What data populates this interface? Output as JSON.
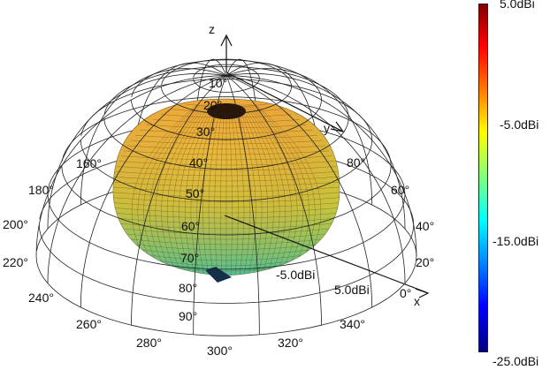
{
  "chart_data": {
    "type": "3d-radiation-pattern",
    "axes": {
      "x": "x",
      "y": "y",
      "z": "z"
    },
    "elevation_labels": [
      "10°",
      "20°",
      "30°",
      "40°",
      "50°",
      "60°",
      "70°",
      "80°",
      "90°"
    ],
    "azimuth_labels": [
      "0°",
      "20°",
      "40°",
      "60°",
      "80°",
      "160°",
      "180°",
      "200°",
      "220°",
      "240°",
      "260°",
      "280°",
      "300°",
      "320°",
      "340°"
    ],
    "radial_labels": [
      "-5.0dBi",
      "5.0dBi"
    ],
    "colorbar": {
      "ticks": [
        "5.0dBi",
        "-5.0dBi",
        "-15.0dBi",
        "-25.0dBi"
      ],
      "range": [
        -25,
        5
      ],
      "colormap": "jet"
    },
    "surface_color": "#e8a43a"
  }
}
